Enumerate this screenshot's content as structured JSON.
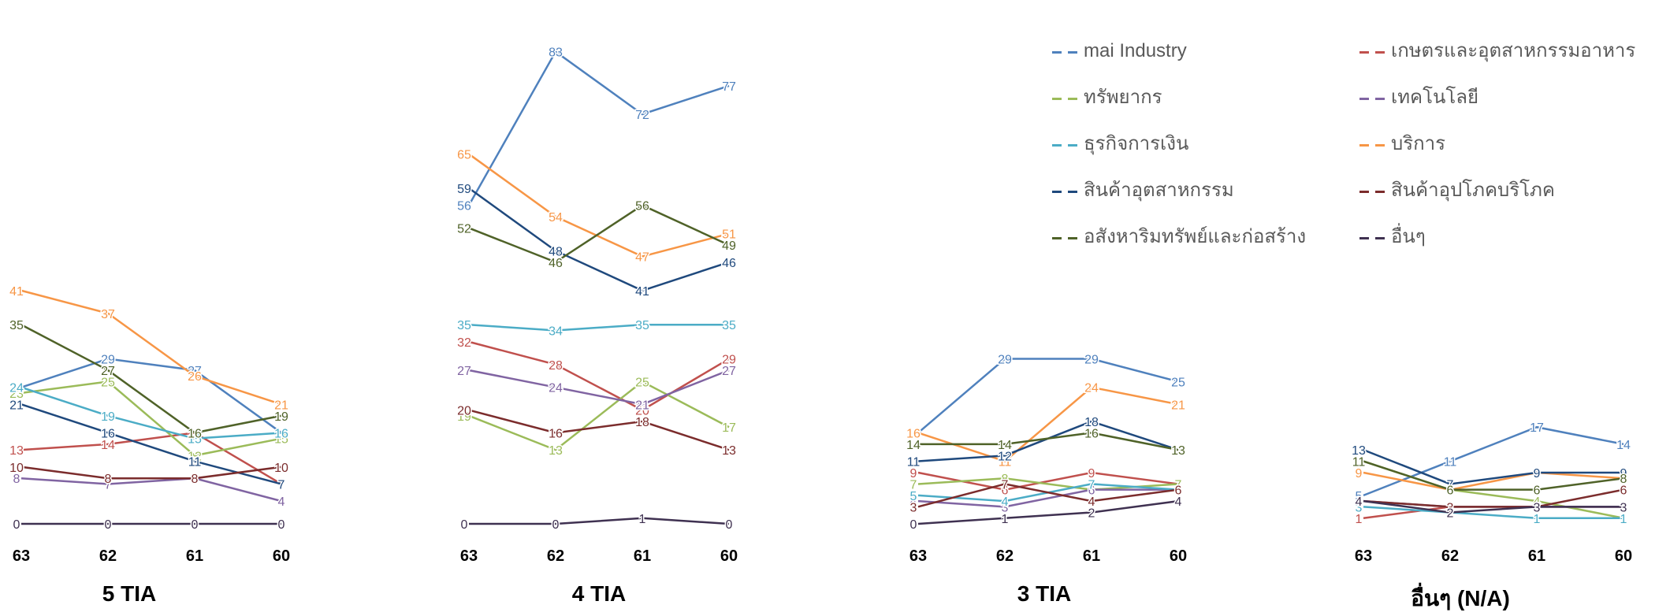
{
  "legend": [
    {
      "name": "mai Industry",
      "color": "#4F81BD"
    },
    {
      "name": "เกษตรและอุตสาหกรรมอาหาร",
      "color": "#C0504D"
    },
    {
      "name": "ทรัพยากร",
      "color": "#9BBB59"
    },
    {
      "name": "เทคโนโลยี",
      "color": "#8064A2"
    },
    {
      "name": "ธุรกิจการเงิน",
      "color": "#4BACC6"
    },
    {
      "name": "บริการ",
      "color": "#F79646"
    },
    {
      "name": "สินค้าอุตสาหกรรม",
      "color": "#1F497D"
    },
    {
      "name": "สินค้าอุปโภคบริโภค",
      "color": "#7B2C2C"
    },
    {
      "name": "อสังหาริมทรัพย์และก่อสร้าง",
      "color": "#4F6228"
    },
    {
      "name": "อื่นๆ",
      "color": "#3F3151"
    }
  ],
  "titles": [
    "5 TIA",
    "4 TIA",
    "3 TIA",
    "อื่นๆ (N/A)"
  ],
  "chart_data": [
    {
      "type": "line",
      "title": "5 TIA",
      "categories": [
        "63",
        "62",
        "61",
        "60"
      ],
      "ylim": [
        0,
        90
      ],
      "series": [
        {
          "name": "mai Industry",
          "values": [
            24,
            29,
            27,
            16
          ]
        },
        {
          "name": "เกษตรและอุตสาหกรรมอาหาร",
          "values": [
            13,
            14,
            16,
            7
          ]
        },
        {
          "name": "ทรัพยากร",
          "values": [
            23,
            25,
            12,
            15
          ]
        },
        {
          "name": "เทคโนโลยี",
          "values": [
            8,
            7,
            8,
            4
          ]
        },
        {
          "name": "ธุรกิจการเงิน",
          "values": [
            24,
            19,
            15,
            16
          ]
        },
        {
          "name": "บริการ",
          "values": [
            41,
            37,
            26,
            21
          ]
        },
        {
          "name": "สินค้าอุตสาหกรรม",
          "values": [
            21,
            16,
            11,
            7
          ]
        },
        {
          "name": "สินค้าอุปโภคบริโภค",
          "values": [
            10,
            8,
            8,
            10
          ]
        },
        {
          "name": "อสังหาริมทรัพย์และก่อสร้าง",
          "values": [
            35,
            27,
            16,
            19
          ]
        },
        {
          "name": "อื่นๆ",
          "values": [
            0,
            0,
            0,
            0
          ]
        }
      ]
    },
    {
      "type": "line",
      "title": "4 TIA",
      "categories": [
        "63",
        "62",
        "61",
        "60"
      ],
      "ylim": [
        0,
        90
      ],
      "series": [
        {
          "name": "mai Industry",
          "values": [
            56,
            83,
            72,
            77
          ]
        },
        {
          "name": "เกษตรและอุตสาหกรรมอาหาร",
          "values": [
            32,
            28,
            20,
            29
          ]
        },
        {
          "name": "ทรัพยากร",
          "values": [
            19,
            13,
            25,
            17
          ]
        },
        {
          "name": "เทคโนโลยี",
          "values": [
            27,
            24,
            21,
            27
          ]
        },
        {
          "name": "ธุรกิจการเงิน",
          "values": [
            35,
            34,
            35,
            35
          ]
        },
        {
          "name": "บริการ",
          "values": [
            65,
            54,
            47,
            51
          ]
        },
        {
          "name": "สินค้าอุตสาหกรรม",
          "values": [
            59,
            48,
            41,
            46
          ]
        },
        {
          "name": "สินค้าอุปโภคบริโภค",
          "values": [
            20,
            16,
            18,
            13
          ]
        },
        {
          "name": "อสังหาริมทรัพย์และก่อสร้าง",
          "values": [
            52,
            46,
            56,
            49
          ]
        },
        {
          "name": "อื่นๆ",
          "values": [
            0,
            0,
            1,
            0
          ]
        }
      ]
    },
    {
      "type": "line",
      "title": "3 TIA",
      "categories": [
        "63",
        "62",
        "61",
        "60"
      ],
      "ylim": [
        0,
        90
      ],
      "series": [
        {
          "name": "mai Industry",
          "values": [
            16,
            29,
            29,
            25
          ]
        },
        {
          "name": "เกษตรและอุตสาหกรรมอาหาร",
          "values": [
            9,
            6,
            9,
            7
          ]
        },
        {
          "name": "ทรัพยากร",
          "values": [
            7,
            8,
            6,
            7
          ]
        },
        {
          "name": "เทคโนโลยี",
          "values": [
            4,
            3,
            6,
            6
          ]
        },
        {
          "name": "ธุรกิจการเงิน",
          "values": [
            5,
            4,
            7,
            6
          ]
        },
        {
          "name": "บริการ",
          "values": [
            16,
            11,
            24,
            21
          ]
        },
        {
          "name": "สินค้าอุตสาหกรรม",
          "values": [
            11,
            12,
            18,
            13
          ]
        },
        {
          "name": "สินค้าอุปโภคบริโภค",
          "values": [
            3,
            7,
            4,
            6
          ]
        },
        {
          "name": "อสังหาริมทรัพย์และก่อสร้าง",
          "values": [
            14,
            14,
            16,
            13
          ]
        },
        {
          "name": "อื่นๆ",
          "values": [
            0,
            1,
            2,
            4
          ]
        }
      ]
    },
    {
      "type": "line",
      "title": "อื่นๆ (N/A)",
      "categories": [
        "63",
        "62",
        "61",
        "60"
      ],
      "ylim": [
        0,
        90
      ],
      "series": [
        {
          "name": "mai Industry",
          "values": [
            5,
            11,
            17,
            14
          ]
        },
        {
          "name": "เกษตรและอุตสาหกรรมอาหาร",
          "values": [
            1,
            3,
            3,
            3
          ]
        },
        {
          "name": "ทรัพยากร",
          "values": [
            11,
            6,
            4,
            1
          ]
        },
        {
          "name": "เทคโนโลยี",
          "values": [
            4,
            3,
            3,
            3
          ]
        },
        {
          "name": "ธุรกิจการเงิน",
          "values": [
            3,
            2,
            1,
            1
          ]
        },
        {
          "name": "บริการ",
          "values": [
            9,
            6,
            9,
            8
          ]
        },
        {
          "name": "สินค้าอุตสาหกรรม",
          "values": [
            13,
            7,
            9,
            9
          ]
        },
        {
          "name": "สินค้าอุปโภคบริโภค",
          "values": [
            4,
            3,
            3,
            6
          ]
        },
        {
          "name": "อสังหาริมทรัพย์และก่อสร้าง",
          "values": [
            11,
            6,
            6,
            8
          ]
        },
        {
          "name": "อื่นๆ",
          "values": [
            4,
            2,
            3,
            3
          ]
        }
      ]
    }
  ]
}
